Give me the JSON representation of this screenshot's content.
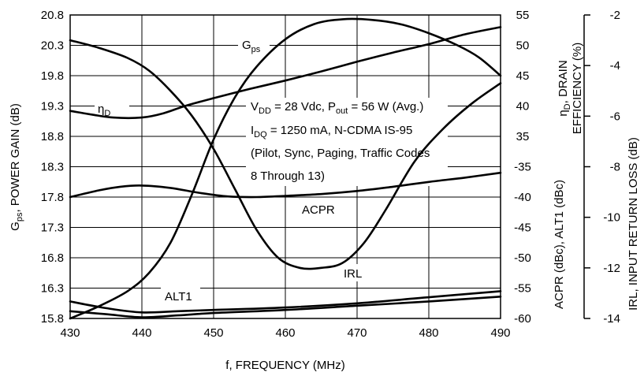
{
  "chart_data": {
    "type": "line",
    "xlabel": "f, FREQUENCY (MHz)",
    "xlim": [
      430,
      490
    ],
    "x_ticks": [
      "430",
      "440",
      "450",
      "460",
      "470",
      "480",
      "490"
    ],
    "left_axis": {
      "label_parts": [
        "G",
        "ps",
        ", POWER GAIN (dB)"
      ],
      "ylim": [
        15.8,
        20.8
      ],
      "ticks": [
        "20.8",
        "20.3",
        "19.8",
        "19.3",
        "18.8",
        "18.3",
        "17.8",
        "17.3",
        "16.8",
        "16.3",
        "15.8"
      ]
    },
    "right_axis_1": {
      "label_top_parts": [
        "η",
        "D",
        ", DRAIN"
      ],
      "label_top_line2": "EFFICIENCY (%)",
      "ylim": [
        5,
        55
      ],
      "ticks": [
        "55",
        "50",
        "45",
        "40",
        "35"
      ],
      "label_bottom": "ACPR (dBc), ALT1 (dBc)",
      "acpr_ylim": [
        -60,
        -10
      ],
      "acpr_ticks": [
        "-35",
        "-40",
        "-45",
        "-50",
        "-55",
        "-60"
      ]
    },
    "right_axis_2": {
      "label": "IRL, INPUT RETURN LOSS (dB)",
      "ylim": [
        -14,
        -2
      ],
      "ticks": [
        "-2",
        "-4",
        "-6",
        "-8",
        "-10",
        "-12",
        "-14"
      ]
    },
    "series": [
      {
        "name": "Gps",
        "axis": "left",
        "x": [
          430,
          434,
          438,
          441,
          444,
          447,
          450,
          453,
          456,
          460,
          464,
          468,
          472,
          476,
          480,
          484,
          487,
          490
        ],
        "y": [
          15.8,
          16.0,
          16.25,
          16.55,
          17.05,
          17.85,
          18.75,
          19.45,
          19.95,
          20.4,
          20.65,
          20.73,
          20.72,
          20.65,
          20.5,
          20.3,
          20.1,
          19.8
        ]
      },
      {
        "name": "ηD",
        "axis": "right_eff",
        "x": [
          430,
          433,
          436,
          440,
          443,
          446,
          450,
          455,
          460,
          465,
          470,
          475,
          480,
          485,
          490
        ],
        "y": [
          39.2,
          38.6,
          38.1,
          38.1,
          38.8,
          40.0,
          41.3,
          42.8,
          44.2,
          45.7,
          47.3,
          48.8,
          50.2,
          51.8,
          53.0
        ]
      },
      {
        "name": "ACPR",
        "axis": "right_acpr",
        "x": [
          430,
          434,
          437,
          440,
          444,
          448,
          452,
          456,
          460,
          465,
          470,
          475,
          480,
          485,
          490
        ],
        "y": [
          -40.0,
          -38.9,
          -38.3,
          -38.1,
          -38.5,
          -39.3,
          -39.9,
          -40.0,
          -39.8,
          -39.5,
          -39.0,
          -38.3,
          -37.5,
          -36.8,
          -36.0
        ]
      },
      {
        "name": "ALT1",
        "axis": "right_acpr",
        "x": [
          430,
          435,
          440,
          445,
          450,
          460,
          470,
          480,
          490
        ],
        "y": [
          -57.2,
          -58.3,
          -59.0,
          -58.8,
          -58.6,
          -58.2,
          -57.5,
          -56.5,
          -55.5
        ]
      },
      {
        "name": "IRL",
        "axis": "right_irl",
        "x": [
          430,
          434,
          438,
          441,
          444,
          447,
          450,
          453,
          456,
          459,
          462,
          465,
          468,
          471,
          474,
          478,
          482,
          486,
          490
        ],
        "y": [
          -3.0,
          -3.3,
          -3.7,
          -4.2,
          -5.0,
          -6.0,
          -7.3,
          -8.9,
          -10.5,
          -11.6,
          -12.0,
          -12.0,
          -11.8,
          -11.0,
          -9.7,
          -7.8,
          -6.5,
          -5.5,
          -4.7
        ]
      },
      {
        "name": "",
        "axis": "right_acpr",
        "x": [
          430,
          435,
          440,
          445,
          450,
          460,
          470,
          480,
          490
        ],
        "y": [
          -58.8,
          -59.3,
          -59.8,
          -59.5,
          -59.1,
          -58.6,
          -57.9,
          -57.2,
          -56.4
        ]
      }
    ],
    "annotations": {
      "gps_label": [
        "G",
        "ps"
      ],
      "eta_label": [
        "η",
        "D"
      ],
      "acpr_label": "ACPR",
      "alt1_label": "ALT1",
      "irl_label": "IRL",
      "cond_line1_parts": [
        "V",
        "DD",
        " = 28 Vdc, P",
        "out",
        " = 56 W (Avg.)"
      ],
      "cond_line2_parts": [
        "I",
        "DQ",
        " = 1250 mA, N-CDMA IS-95"
      ],
      "cond_line3": "(Pilot, Sync, Paging, Traffic Codes",
      "cond_line4": "8 Through 13)"
    },
    "grid": true
  }
}
